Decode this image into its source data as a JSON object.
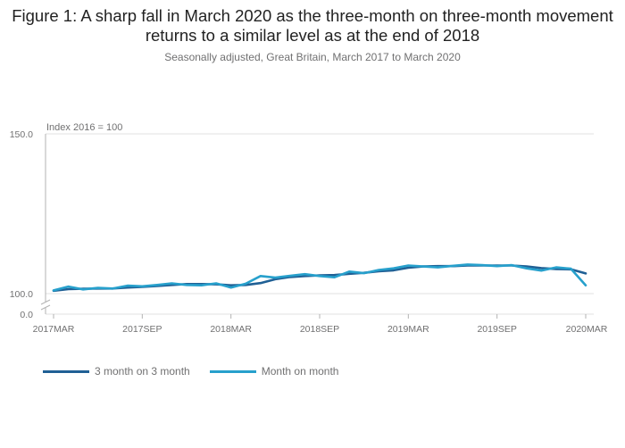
{
  "title": "Figure 1: A sharp fall in March 2020 as the three-month on three-month movement returns to a similar level as at the end of 2018",
  "subtitle": "Seasonally adjusted, Great Britain, March 2017 to March 2020",
  "chart_data": {
    "type": "line",
    "ylabel": "Index 2016 = 100",
    "y_ticks": [
      "150.0",
      "100.0",
      "0.0"
    ],
    "ylim": [
      0,
      150
    ],
    "axis_break": "between 0.0 and 100.0",
    "x_ticks": [
      "2017MAR",
      "2017SEP",
      "2018MAR",
      "2018SEP",
      "2019MAR",
      "2019SEP",
      "2020MAR"
    ],
    "grid": true,
    "legend_position": "bottom-left",
    "x": [
      "2017MAR",
      "2017APR",
      "2017MAY",
      "2017JUN",
      "2017JUL",
      "2017AUG",
      "2017SEP",
      "2017OCT",
      "2017NOV",
      "2017DEC",
      "2018JAN",
      "2018FEB",
      "2018MAR",
      "2018APR",
      "2018MAY",
      "2018JUN",
      "2018JUL",
      "2018AUG",
      "2018SEP",
      "2018OCT",
      "2018NOV",
      "2018DEC",
      "2019JAN",
      "2019FEB",
      "2019MAR",
      "2019APR",
      "2019MAY",
      "2019JUN",
      "2019JUL",
      "2019AUG",
      "2019SEP",
      "2019OCT",
      "2019NOV",
      "2019DEC",
      "2020JAN",
      "2020FEB",
      "2020MAR"
    ],
    "series": [
      {
        "name": "3 month on 3 month",
        "color": "#206095",
        "values": [
          100.9,
          101.4,
          101.5,
          101.6,
          101.6,
          101.9,
          102.1,
          102.4,
          102.7,
          103.0,
          103.0,
          102.9,
          102.6,
          102.7,
          103.3,
          104.5,
          105.2,
          105.5,
          105.7,
          105.8,
          106.2,
          106.5,
          107.0,
          107.3,
          108.1,
          108.5,
          108.6,
          108.6,
          108.8,
          108.8,
          108.8,
          108.8,
          108.5,
          108.0,
          107.7,
          107.6,
          106.3
        ]
      },
      {
        "name": "Month on month",
        "color": "#27a0cc",
        "values": [
          101.0,
          102.2,
          101.3,
          101.8,
          101.6,
          102.5,
          102.3,
          102.7,
          103.2,
          102.7,
          102.6,
          103.2,
          101.9,
          103.1,
          105.5,
          105.0,
          105.6,
          106.1,
          105.5,
          105.1,
          106.9,
          106.4,
          107.4,
          107.9,
          108.8,
          108.5,
          108.2,
          108.7,
          109.1,
          108.9,
          108.6,
          108.9,
          107.9,
          107.2,
          108.2,
          107.8,
          102.6
        ]
      }
    ]
  }
}
